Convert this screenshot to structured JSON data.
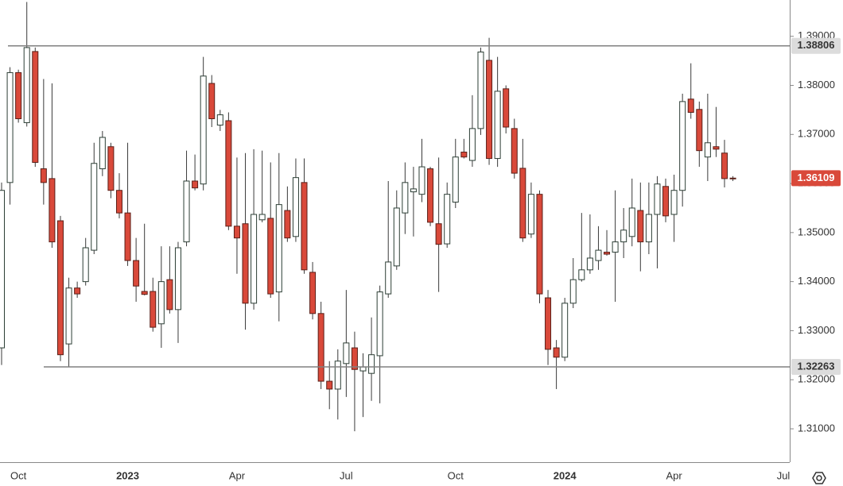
{
  "chart_data": {
    "type": "candlestick",
    "categories": [
      null,
      null,
      "Oct",
      null,
      null,
      null,
      null,
      null,
      null,
      null,
      null,
      null,
      null,
      null,
      null,
      "2023",
      null,
      null,
      null,
      null,
      null,
      null,
      null,
      null,
      null,
      null,
      null,
      null,
      "Apr",
      null,
      null,
      null,
      null,
      null,
      null,
      null,
      null,
      null,
      null,
      null,
      null,
      "Jul",
      null,
      null,
      null,
      null,
      null,
      null,
      null,
      null,
      null,
      null,
      null,
      null,
      "Oct",
      null,
      null,
      null,
      null,
      null,
      null,
      null,
      null,
      null,
      null,
      null,
      null,
      "2024",
      null,
      null,
      null,
      null,
      null,
      null,
      null,
      null,
      null,
      null,
      null,
      null,
      "Apr",
      null,
      null,
      null,
      null,
      null,
      null,
      null,
      null,
      null,
      null,
      null,
      null,
      "Jul"
    ],
    "open": [
      1.3265,
      1.3602,
      1.3826,
      1.3724,
      1.3869,
      1.363,
      1.361,
      1.3524,
      1.3273,
      1.3387,
      1.34,
      1.3464,
      1.363,
      1.3675,
      1.3586,
      1.354,
      1.3443,
      1.338,
      1.338,
      1.3314,
      1.3404,
      1.3343,
      1.3481,
      1.3605,
      1.3599,
      1.3804,
      1.3719,
      1.3728,
      1.3513,
      1.3518,
      1.3356,
      1.3526,
      1.3529,
      1.3379,
      1.3545,
      1.3492,
      1.3602,
      1.3419,
      1.3335,
      1.3197,
      1.3181,
      1.3233,
      1.3265,
      1.3218,
      1.3213,
      1.3249,
      1.3375,
      1.3432,
      1.354,
      1.3583,
      1.3578,
      1.363,
      1.3518,
      1.3477,
      1.3562,
      1.3664,
      1.3647,
      1.3712,
      1.3851,
      1.3651,
      1.3793,
      1.3712,
      1.3631,
      1.3497,
      1.3578,
      1.3367,
      1.3265,
      1.3246,
      1.3356,
      1.3404,
      1.3424,
      1.3443,
      1.346,
      1.346,
      1.3481,
      1.3492,
      1.3545,
      1.3481,
      1.3537,
      1.3594,
      1.3537,
      1.3586,
      1.3772,
      1.3751,
      1.3654,
      1.3675,
      1.3662,
      1.3611,
      null,
      null,
      null,
      null,
      null,
      null
    ],
    "high": [
      1.3602,
      1.3837,
      1.3832,
      1.397,
      1.3877,
      1.3813,
      1.3804,
      1.3534,
      1.3408,
      1.34,
      1.3489,
      1.3683,
      1.3707,
      1.3683,
      1.3621,
      1.3683,
      1.3489,
      1.3518,
      1.3408,
      1.3472,
      1.3472,
      1.3481,
      1.3667,
      1.3659,
      1.3858,
      1.3821,
      1.375,
      1.3745,
      1.3653,
      1.3662,
      1.367,
      1.3667,
      1.3643,
      1.3662,
      1.3594,
      1.3651,
      1.3651,
      1.344,
      1.3359,
      1.3238,
      1.3262,
      1.3383,
      1.3298,
      1.3254,
      1.3327,
      1.3392,
      1.3605,
      1.3586,
      1.3643,
      1.3634,
      1.3691,
      1.3634,
      1.3653,
      1.3602,
      1.3691,
      1.3691,
      1.378,
      1.3877,
      1.3897,
      1.3858,
      1.38,
      1.3732,
      1.3691,
      1.3602,
      1.3586,
      1.3383,
      1.3281,
      1.3367,
      1.3448,
      1.354,
      1.3537,
      1.3513,
      1.3505,
      1.3586,
      1.355,
      1.361,
      1.3602,
      1.3602,
      1.3615,
      1.361,
      1.3618,
      1.3783,
      1.3845,
      1.3767,
      1.3783,
      1.3756,
      1.3689,
      1.3615,
      null,
      null,
      null,
      null,
      null,
      null
    ],
    "low": [
      1.323,
      1.3557,
      1.3724,
      1.3716,
      1.3634,
      1.3557,
      1.3469,
      1.3238,
      1.3226,
      1.3367,
      1.3392,
      1.3456,
      1.3615,
      1.357,
      1.3529,
      1.3432,
      1.3359,
      1.3372,
      1.3298,
      1.3265,
      1.3335,
      1.3275,
      1.3472,
      1.3586,
      1.3586,
      1.3715,
      1.3707,
      1.3505,
      1.3416,
      1.3302,
      1.3343,
      1.3521,
      1.3367,
      1.3319,
      1.3481,
      1.3481,
      1.3416,
      1.3323,
      1.3181,
      1.314,
      1.3119,
      1.3165,
      1.3095,
      1.3124,
      1.3157,
      1.3152,
      1.3367,
      1.3424,
      1.3497,
      1.3492,
      1.3562,
      1.3513,
      1.3379,
      1.3469,
      1.355,
      1.3651,
      1.3634,
      1.3699,
      1.3638,
      1.3634,
      1.3702,
      1.361,
      1.3481,
      1.3489,
      1.3356,
      1.323,
      1.3181,
      1.3238,
      1.3346,
      1.34,
      1.3416,
      1.3424,
      1.3453,
      1.3359,
      1.3448,
      1.3472,
      1.3421,
      1.3456,
      1.3427,
      1.3521,
      1.3481,
      1.3553,
      1.3732,
      1.3634,
      1.3605,
      1.3654,
      1.3592,
      1.3605,
      null,
      null,
      null,
      null,
      null,
      null
    ],
    "close": [
      1.3586,
      1.3826,
      1.3732,
      1.3877,
      1.3643,
      1.3602,
      1.3481,
      1.3251,
      1.3387,
      1.3375,
      1.3469,
      1.3641,
      1.3694,
      1.3586,
      1.354,
      1.3443,
      1.3391,
      1.3374,
      1.3307,
      1.34,
      1.3343,
      1.3469,
      1.3605,
      1.3591,
      1.3819,
      1.3732,
      1.374,
      1.3513,
      1.3489,
      1.3356,
      1.3537,
      1.3537,
      1.3375,
      1.3557,
      1.3489,
      1.3612,
      1.3424,
      1.3335,
      1.3197,
      1.3181,
      1.3238,
      1.3275,
      1.3221,
      1.3226,
      1.3251,
      1.3379,
      1.344,
      1.355,
      1.3602,
      1.3589,
      1.3634,
      1.3521,
      1.3476,
      1.3578,
      1.3654,
      1.3654,
      1.3712,
      1.3868,
      1.3651,
      1.3788,
      1.3715,
      1.3621,
      1.3489,
      1.3578,
      1.3375,
      1.3262,
      1.3246,
      1.3356,
      1.3404,
      1.3424,
      1.3448,
      1.3464,
      1.3456,
      1.3481,
      1.3505,
      1.355,
      1.3481,
      1.3537,
      1.3599,
      1.3534,
      1.3586,
      1.3767,
      1.3745,
      1.3667,
      1.3683,
      1.367,
      1.361,
      1.36109,
      null,
      null,
      null,
      null,
      null,
      null
    ],
    "up_color": "#ffffff",
    "down_color": "#d9493a",
    "ylim": [
      1.3032,
      1.3974
    ],
    "yticks": [
      {
        "value": 1.31,
        "label": "1.31000"
      },
      {
        "value": 1.32,
        "label": "1.32000"
      },
      {
        "value": 1.33,
        "label": "1.33000"
      },
      {
        "value": 1.34,
        "label": "1.34000"
      },
      {
        "value": 1.35,
        "label": "1.35000"
      },
      {
        "value": 1.36,
        "label": "1.36000"
      },
      {
        "value": 1.37,
        "label": "1.37000"
      },
      {
        "value": 1.38,
        "label": "1.38000"
      },
      {
        "value": 1.39,
        "label": "1.39000"
      }
    ],
    "levels": [
      {
        "value": 1.38806,
        "label": "1.38806"
      },
      {
        "value": 1.32263,
        "label": "1.32263"
      }
    ],
    "level_color": "#808080",
    "last_price": {
      "value": 1.36109,
      "label": "1.36109"
    }
  }
}
